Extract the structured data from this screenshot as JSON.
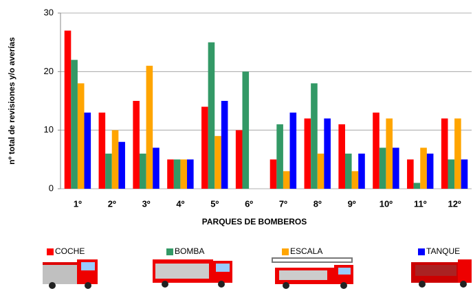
{
  "chart_data": {
    "type": "bar",
    "x_label": "PARQUES DE BOMBEROS",
    "y_label": "nº total de revisiones y/o averías",
    "categories": [
      "1º",
      "2º",
      "3º",
      "4º",
      "5º",
      "6º",
      "7º",
      "8º",
      "9º",
      "10º",
      "11º",
      "12º"
    ],
    "series": [
      {
        "name": "COCHE",
        "color": "#ff0000",
        "values": [
          27,
          13,
          15,
          5,
          14,
          10,
          5,
          12,
          11,
          13,
          5,
          12
        ]
      },
      {
        "name": "BOMBA",
        "color": "#339966",
        "values": [
          22,
          6,
          6,
          5,
          25,
          20,
          11,
          18,
          6,
          7,
          1,
          5
        ]
      },
      {
        "name": "ESCALA",
        "color": "#ffa500",
        "values": [
          18,
          10,
          21,
          5,
          9,
          0,
          3,
          6,
          3,
          12,
          7,
          12
        ]
      },
      {
        "name": "TANQUE",
        "color": "#0000ff",
        "values": [
          13,
          8,
          7,
          5,
          15,
          0,
          13,
          12,
          6,
          7,
          6,
          5
        ]
      }
    ],
    "ylim": [
      0,
      30
    ],
    "yticks": [
      0,
      10,
      20,
      30
    ],
    "grid": true,
    "legend": "bottom"
  }
}
